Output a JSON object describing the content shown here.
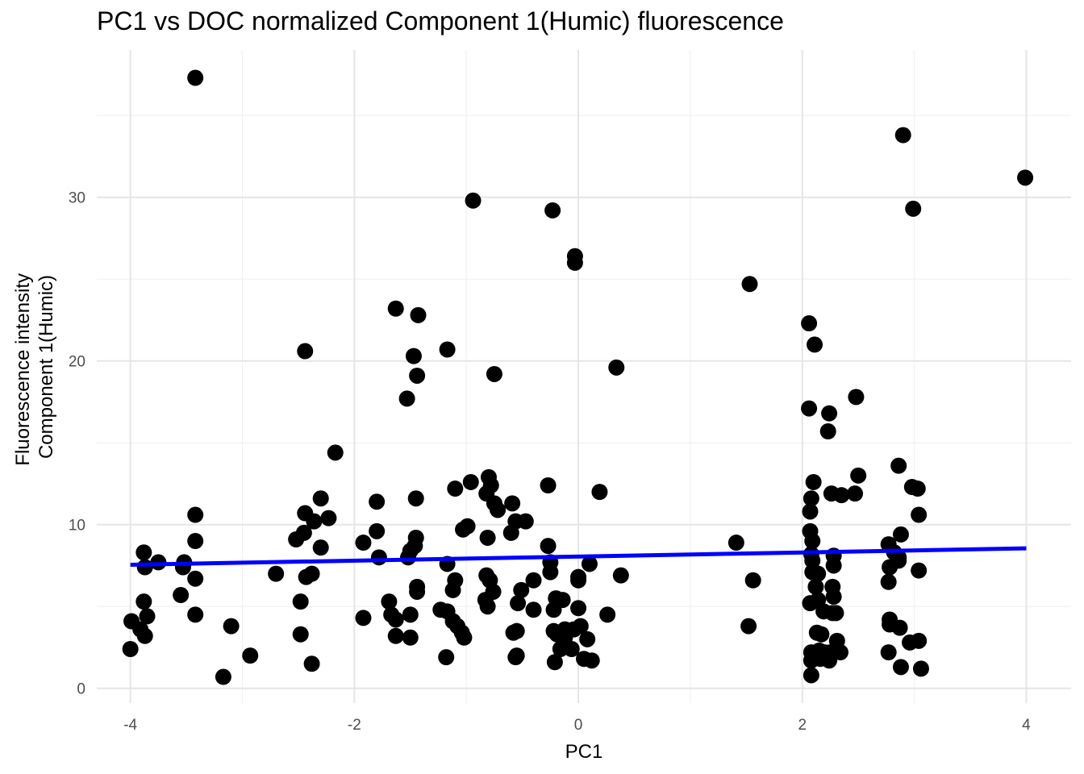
{
  "chart_data": {
    "type": "scatter",
    "title": "PC1 vs DOC normalized Component 1(Humic) fluorescence",
    "xlabel": "PC1",
    "ylabel_lines": [
      "Fluorescence intensity",
      "Component 1(Humic)"
    ],
    "xlim": [
      -4.3,
      4.4
    ],
    "ylim": [
      -0.9,
      39
    ],
    "x_ticks": [
      -4,
      -2,
      0,
      2,
      4
    ],
    "x_tick_labels": [
      "-4",
      "-2",
      "0",
      "2",
      "4"
    ],
    "y_ticks": [
      0,
      10,
      20,
      30
    ],
    "y_tick_labels": [
      "0",
      "10",
      "20",
      "30"
    ],
    "grid": true,
    "legend": "none",
    "point_color": "#000000",
    "trend_line": {
      "color": "#0000ff",
      "x": [
        -4,
        4
      ],
      "y": [
        7.55,
        8.55
      ]
    },
    "points": [
      [
        -3.42,
        37.3
      ],
      [
        2.9,
        33.8
      ],
      [
        3.99,
        31.2
      ],
      [
        -0.94,
        29.8
      ],
      [
        -0.23,
        29.2
      ],
      [
        2.99,
        29.3
      ],
      [
        -0.03,
        26.4
      ],
      [
        -0.03,
        26.0
      ],
      [
        1.53,
        24.7
      ],
      [
        -1.63,
        23.2
      ],
      [
        -1.43,
        22.8
      ],
      [
        2.06,
        22.3
      ],
      [
        2.11,
        21.0
      ],
      [
        -2.44,
        20.6
      ],
      [
        -1.17,
        20.7
      ],
      [
        -1.47,
        20.3
      ],
      [
        -1.44,
        19.1
      ],
      [
        -0.75,
        19.2
      ],
      [
        0.34,
        19.6
      ],
      [
        -1.53,
        17.7
      ],
      [
        2.48,
        17.8
      ],
      [
        2.06,
        17.1
      ],
      [
        2.24,
        16.8
      ],
      [
        2.23,
        15.7
      ],
      [
        -2.17,
        14.4
      ],
      [
        2.86,
        13.6
      ],
      [
        2.5,
        13.0
      ],
      [
        -0.8,
        12.9
      ],
      [
        -0.96,
        12.6
      ],
      [
        -0.27,
        12.4
      ],
      [
        2.1,
        12.6
      ],
      [
        -1.1,
        12.2
      ],
      [
        -0.78,
        12.4
      ],
      [
        -0.82,
        11.9
      ],
      [
        0.19,
        12.0
      ],
      [
        2.26,
        11.9
      ],
      [
        2.35,
        11.8
      ],
      [
        2.47,
        11.9
      ],
      [
        2.98,
        12.3
      ],
      [
        3.03,
        12.2
      ],
      [
        -2.3,
        11.6
      ],
      [
        -1.45,
        11.6
      ],
      [
        -1.8,
        11.4
      ],
      [
        -0.75,
        11.3
      ],
      [
        -0.59,
        11.3
      ],
      [
        2.08,
        11.6
      ],
      [
        -0.72,
        10.9
      ],
      [
        -3.42,
        10.6
      ],
      [
        -2.44,
        10.7
      ],
      [
        -2.36,
        10.2
      ],
      [
        -2.23,
        10.4
      ],
      [
        -0.56,
        10.2
      ],
      [
        -0.47,
        10.2
      ],
      [
        2.07,
        10.8
      ],
      [
        3.04,
        10.6
      ],
      [
        -0.99,
        9.9
      ],
      [
        -1.03,
        9.7
      ],
      [
        -0.6,
        9.5
      ],
      [
        -1.45,
        9.2
      ],
      [
        -0.81,
        9.2
      ],
      [
        -1.8,
        9.6
      ],
      [
        -2.45,
        9.5
      ],
      [
        -2.52,
        9.1
      ],
      [
        -3.42,
        9.0
      ],
      [
        -1.92,
        8.9
      ],
      [
        2.07,
        9.6
      ],
      [
        2.09,
        9.0
      ],
      [
        1.41,
        8.9
      ],
      [
        2.88,
        9.4
      ],
      [
        2.77,
        8.8
      ],
      [
        -0.27,
        8.7
      ],
      [
        -1.46,
        8.7
      ],
      [
        -1.5,
        8.4
      ],
      [
        -2.3,
        8.6
      ],
      [
        -3.88,
        8.3
      ],
      [
        2.08,
        8.2
      ],
      [
        2.28,
        8.1
      ],
      [
        2.82,
        8.3
      ],
      [
        -1.52,
        8.0
      ],
      [
        -1.78,
        8.0
      ],
      [
        2.86,
        8.0
      ],
      [
        -3.52,
        7.7
      ],
      [
        -3.75,
        7.7
      ],
      [
        -3.53,
        7.4
      ],
      [
        -3.87,
        7.4
      ],
      [
        -1.17,
        7.6
      ],
      [
        -0.25,
        7.7
      ],
      [
        0.1,
        7.6
      ],
      [
        2.09,
        7.8
      ],
      [
        2.28,
        7.5
      ],
      [
        2.78,
        7.4
      ],
      [
        2.86,
        7.8
      ],
      [
        3.04,
        7.2
      ],
      [
        -0.25,
        7.1
      ],
      [
        -2.7,
        7.0
      ],
      [
        -2.38,
        7.0
      ],
      [
        -2.43,
        6.8
      ],
      [
        -3.42,
        6.7
      ],
      [
        -0.82,
        6.9
      ],
      [
        -0.79,
        6.6
      ],
      [
        -0.4,
        6.6
      ],
      [
        0.0,
        6.8
      ],
      [
        0.0,
        6.6
      ],
      [
        0.38,
        6.9
      ],
      [
        2.09,
        7.1
      ],
      [
        2.14,
        7.0
      ],
      [
        1.56,
        6.6
      ],
      [
        2.77,
        6.5
      ],
      [
        -1.1,
        6.6
      ],
      [
        -1.12,
        6.0
      ],
      [
        -1.44,
        6.2
      ],
      [
        -1.44,
        5.9
      ],
      [
        -0.76,
        5.9
      ],
      [
        -0.51,
        6.0
      ],
      [
        2.12,
        6.2
      ],
      [
        2.27,
        6.2
      ],
      [
        -3.55,
        5.7
      ],
      [
        -3.88,
        5.3
      ],
      [
        -2.48,
        5.3
      ],
      [
        -1.69,
        5.3
      ],
      [
        -0.83,
        5.4
      ],
      [
        -0.81,
        5.0
      ],
      [
        -0.54,
        5.2
      ],
      [
        -0.14,
        5.4
      ],
      [
        -0.2,
        5.5
      ],
      [
        2.07,
        5.2
      ],
      [
        2.14,
        5.4
      ],
      [
        2.28,
        5.6
      ],
      [
        -1.17,
        4.7
      ],
      [
        -1.23,
        4.8
      ],
      [
        -0.4,
        4.8
      ],
      [
        -0.22,
        4.8
      ],
      [
        0.0,
        4.9
      ],
      [
        0.26,
        4.5
      ],
      [
        2.19,
        4.7
      ],
      [
        2.27,
        4.6
      ],
      [
        2.3,
        4.6
      ],
      [
        -3.85,
        4.4
      ],
      [
        -3.42,
        4.5
      ],
      [
        -3.99,
        4.1
      ],
      [
        -1.92,
        4.3
      ],
      [
        -1.67,
        4.5
      ],
      [
        -1.5,
        4.5
      ],
      [
        -1.63,
        4.2
      ],
      [
        -1.12,
        4.1
      ],
      [
        -1.08,
        3.8
      ],
      [
        2.78,
        4.2
      ],
      [
        -3.91,
        3.6
      ],
      [
        -3.1,
        3.8
      ],
      [
        -1.04,
        3.4
      ],
      [
        -1.02,
        3.1
      ],
      [
        -0.58,
        3.4
      ],
      [
        -0.55,
        3.5
      ],
      [
        -0.22,
        3.5
      ],
      [
        -0.12,
        3.6
      ],
      [
        -0.04,
        3.6
      ],
      [
        0.02,
        3.8
      ],
      [
        1.52,
        3.8
      ],
      [
        2.78,
        3.9
      ],
      [
        2.87,
        3.7
      ],
      [
        -3.87,
        3.2
      ],
      [
        -2.48,
        3.3
      ],
      [
        -1.63,
        3.2
      ],
      [
        -1.5,
        3.1
      ],
      [
        -0.19,
        3.3
      ],
      [
        -0.12,
        3.1
      ],
      [
        0.08,
        3.0
      ],
      [
        2.13,
        3.4
      ],
      [
        2.17,
        3.3
      ],
      [
        2.31,
        2.9
      ],
      [
        2.96,
        2.8
      ],
      [
        3.04,
        2.9
      ],
      [
        -4.0,
        2.4
      ],
      [
        -0.13,
        2.6
      ],
      [
        -0.06,
        2.4
      ],
      [
        -0.16,
        2.4
      ],
      [
        2.08,
        2.2
      ],
      [
        2.15,
        2.3
      ],
      [
        2.2,
        2.2
      ],
      [
        2.25,
        2.2
      ],
      [
        2.34,
        2.2
      ],
      [
        2.77,
        2.2
      ],
      [
        -2.93,
        2.0
      ],
      [
        -1.18,
        1.9
      ],
      [
        -0.55,
        2.0
      ],
      [
        -0.56,
        1.9
      ],
      [
        0.05,
        1.8
      ],
      [
        0.12,
        1.7
      ],
      [
        -0.21,
        1.6
      ],
      [
        2.08,
        1.7
      ],
      [
        2.16,
        1.8
      ],
      [
        2.24,
        1.7
      ],
      [
        -2.38,
        1.5
      ],
      [
        2.88,
        1.3
      ],
      [
        3.06,
        1.2
      ],
      [
        -3.17,
        0.7
      ],
      [
        2.08,
        0.8
      ]
    ]
  }
}
